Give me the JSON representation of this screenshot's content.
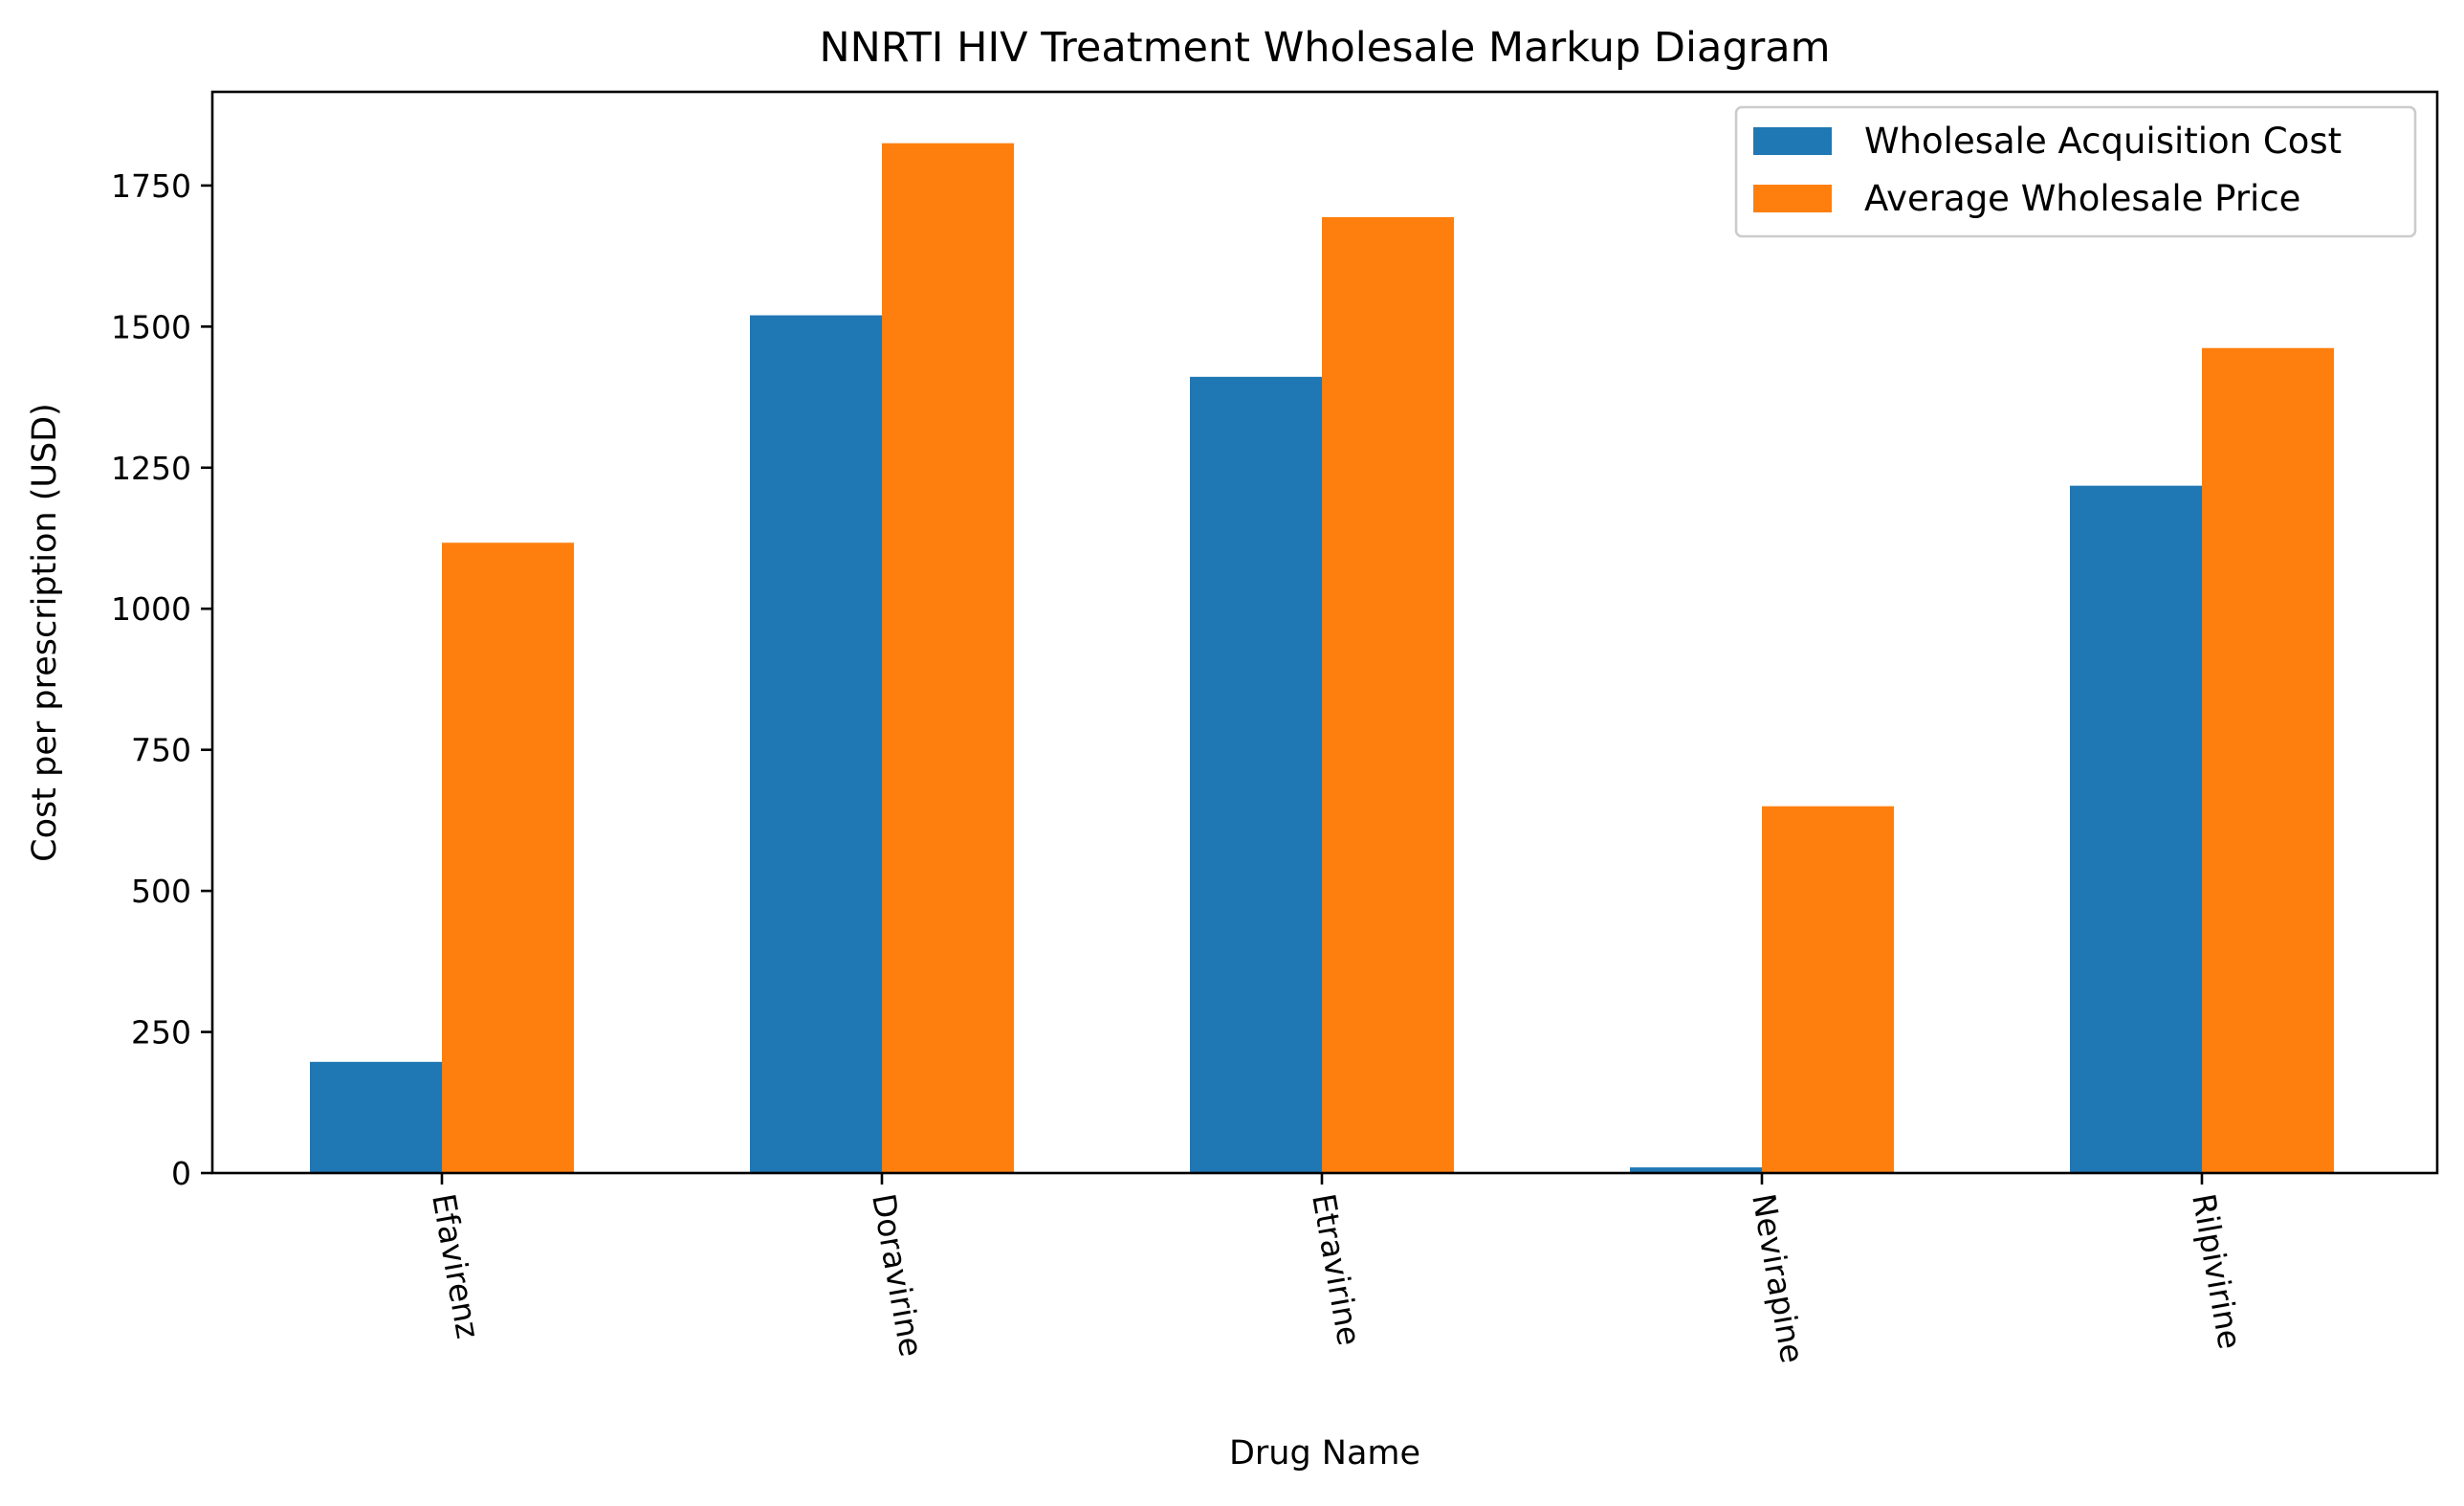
{
  "chart_data": {
    "type": "bar",
    "title": "NNRTI HIV Treatment Wholesale Markup Diagram",
    "xlabel": "Drug Name",
    "ylabel": "Cost per prescription (USD)",
    "categories": [
      "Efavirenz",
      "Doravirine",
      "Etravirine",
      "Nevirapine",
      "Rilpivirine"
    ],
    "series": [
      {
        "name": "Wholesale Acquisition Cost",
        "color": "#1f77b4",
        "values": [
          197,
          1520,
          1411,
          10,
          1218
        ]
      },
      {
        "name": "Average Wholesale Price",
        "color": "#ff7f0e",
        "values": [
          1117,
          1825,
          1694,
          650,
          1462
        ]
      }
    ],
    "ylim": [
      0,
      1916
    ],
    "yticks": [
      0,
      250,
      500,
      750,
      1000,
      1250,
      1500,
      1750
    ],
    "grid": false,
    "legend_position": "top-right",
    "x_tick_rotation": "rotated"
  }
}
